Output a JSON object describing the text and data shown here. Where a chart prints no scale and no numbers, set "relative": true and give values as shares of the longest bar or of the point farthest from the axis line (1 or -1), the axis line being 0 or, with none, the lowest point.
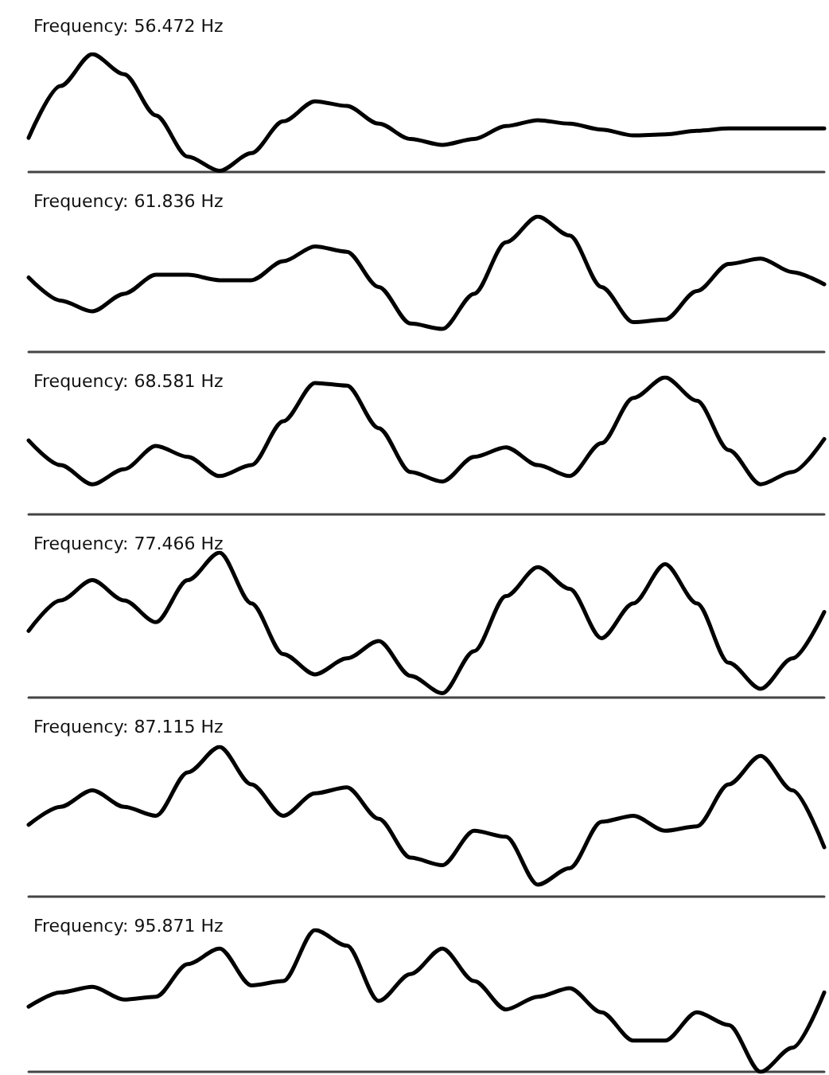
{
  "chart_data": [
    {
      "type": "line",
      "title": "Frequency: 56.472 Hz",
      "relative": true,
      "tick_labels": false,
      "color": "#000000",
      "categories": [
        null,
        null,
        null,
        null,
        null,
        null,
        null,
        null,
        null,
        null,
        null,
        null,
        null,
        null,
        null,
        null,
        null,
        null,
        null,
        null,
        null,
        null,
        null,
        null,
        null,
        null
      ],
      "values": [
        0.29,
        0.73,
        1.0,
        0.83,
        0.48,
        0.13,
        0.01,
        0.16,
        0.43,
        0.6,
        0.56,
        0.41,
        0.28,
        0.23,
        0.28,
        0.39,
        0.44,
        0.41,
        0.36,
        0.31,
        0.32,
        0.35,
        0.37,
        0.37,
        0.37,
        0.37
      ]
    },
    {
      "type": "line",
      "title": "Frequency: 61.836 Hz",
      "relative": true,
      "tick_labels": false,
      "color": "#000000",
      "categories": [
        null,
        null,
        null,
        null,
        null,
        null,
        null,
        null,
        null,
        null,
        null,
        null,
        null,
        null,
        null,
        null,
        null,
        null,
        null,
        null,
        null,
        null,
        null,
        null,
        null,
        null
      ],
      "values": [
        0.55,
        0.38,
        0.3,
        0.43,
        0.57,
        0.57,
        0.53,
        0.53,
        0.67,
        0.78,
        0.74,
        0.48,
        0.21,
        0.17,
        0.43,
        0.81,
        1.0,
        0.86,
        0.48,
        0.22,
        0.24,
        0.45,
        0.65,
        0.69,
        0.59,
        0.5
      ]
    },
    {
      "type": "line",
      "title": "Frequency: 68.581 Hz",
      "relative": true,
      "tick_labels": false,
      "color": "#000000",
      "categories": [
        null,
        null,
        null,
        null,
        null,
        null,
        null,
        null,
        null,
        null,
        null,
        null,
        null,
        null,
        null,
        null,
        null,
        null,
        null,
        null,
        null,
        null,
        null,
        null,
        null,
        null
      ],
      "values": [
        0.54,
        0.36,
        0.22,
        0.33,
        0.5,
        0.42,
        0.28,
        0.36,
        0.68,
        0.96,
        0.94,
        0.63,
        0.31,
        0.24,
        0.42,
        0.49,
        0.36,
        0.28,
        0.52,
        0.85,
        1.0,
        0.83,
        0.47,
        0.22,
        0.31,
        0.55
      ]
    },
    {
      "type": "line",
      "title": "Frequency: 77.466 Hz",
      "relative": true,
      "tick_labels": false,
      "color": "#000000",
      "categories": [
        null,
        null,
        null,
        null,
        null,
        null,
        null,
        null,
        null,
        null,
        null,
        null,
        null,
        null,
        null,
        null,
        null,
        null,
        null,
        null,
        null,
        null,
        null,
        null,
        null,
        null
      ],
      "values": [
        0.46,
        0.67,
        0.81,
        0.67,
        0.52,
        0.81,
        1.0,
        0.65,
        0.3,
        0.16,
        0.27,
        0.39,
        0.15,
        0.03,
        0.32,
        0.7,
        0.9,
        0.75,
        0.41,
        0.65,
        0.92,
        0.65,
        0.24,
        0.06,
        0.27,
        0.59
      ]
    },
    {
      "type": "line",
      "title": "Frequency: 87.115 Hz",
      "relative": true,
      "tick_labels": false,
      "color": "#000000",
      "categories": [
        null,
        null,
        null,
        null,
        null,
        null,
        null,
        null,
        null,
        null,
        null,
        null,
        null,
        null,
        null,
        null,
        null,
        null,
        null,
        null,
        null,
        null,
        null,
        null,
        null,
        null
      ],
      "values": [
        0.48,
        0.6,
        0.71,
        0.6,
        0.54,
        0.83,
        1.0,
        0.75,
        0.54,
        0.69,
        0.73,
        0.52,
        0.26,
        0.21,
        0.44,
        0.4,
        0.08,
        0.19,
        0.5,
        0.54,
        0.44,
        0.47,
        0.75,
        0.94,
        0.71,
        0.33
      ]
    },
    {
      "type": "line",
      "title": "Frequency: 95.871 Hz",
      "relative": true,
      "tick_labels": false,
      "color": "#000000",
      "categories": [
        null,
        null,
        null,
        null,
        null,
        null,
        null,
        null,
        null,
        null,
        null,
        null,
        null,
        null,
        null,
        null,
        null,
        null,
        null,
        null,
        null,
        null,
        null,
        null,
        null,
        null
      ],
      "values": [
        0.46,
        0.56,
        0.6,
        0.51,
        0.53,
        0.76,
        0.87,
        0.61,
        0.64,
        1.0,
        0.89,
        0.5,
        0.69,
        0.87,
        0.64,
        0.44,
        0.53,
        0.59,
        0.42,
        0.22,
        0.22,
        0.42,
        0.33,
        0.0,
        0.17,
        0.56
      ]
    }
  ]
}
